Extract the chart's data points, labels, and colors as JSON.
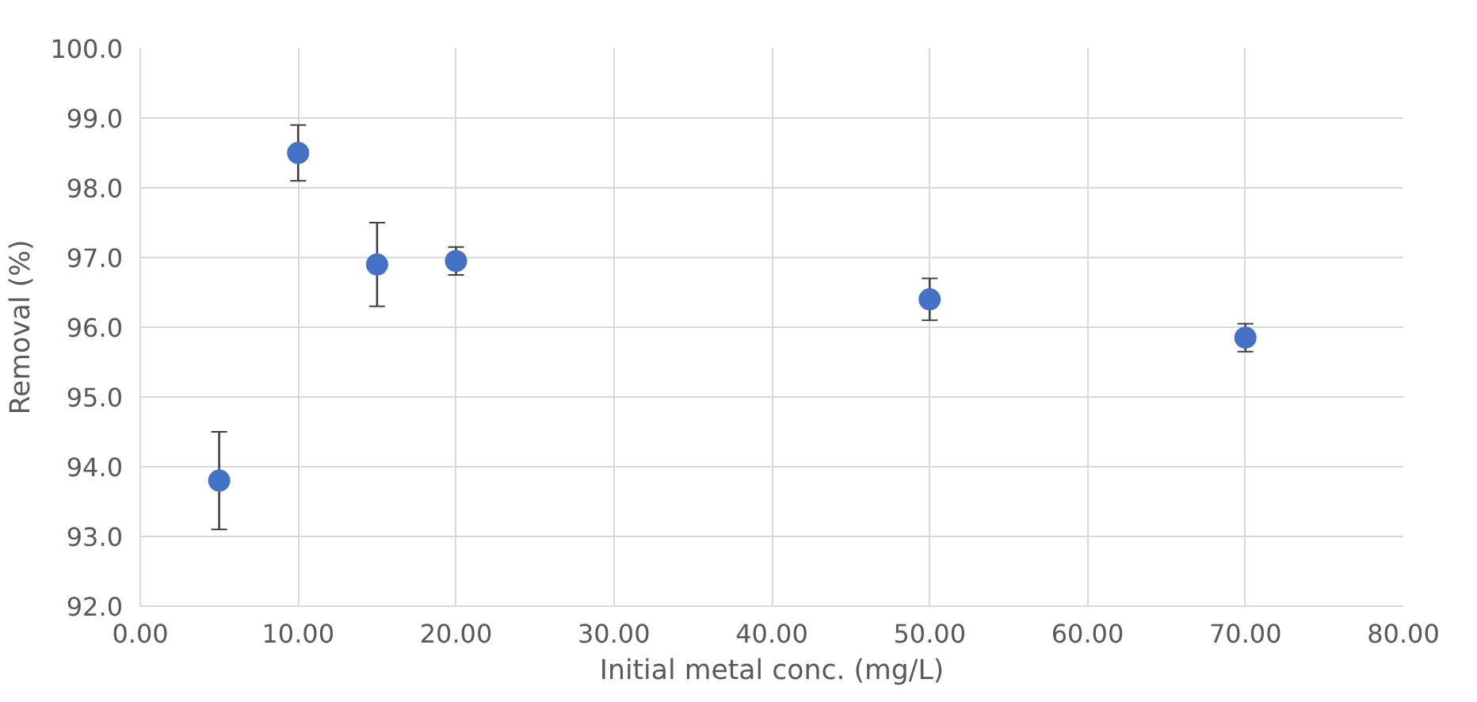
{
  "chart_data": {
    "type": "scatter",
    "xlabel": "Initial metal conc. (mg/L)",
    "ylabel": "Removal (%)",
    "x": [
      5,
      10,
      15,
      20,
      50,
      70
    ],
    "series": [
      {
        "color": "#4472c4",
        "values": [
          93.8,
          98.5,
          96.9,
          96.95,
          96.4,
          95.85
        ],
        "errors": [
          0.7,
          0.4,
          0.6,
          0.2,
          0.3,
          0.2
        ]
      }
    ],
    "xlim": [
      0,
      80
    ],
    "xticks": [
      {
        "value": 0,
        "label": "0.00"
      },
      {
        "value": 10,
        "label": "10.00"
      },
      {
        "value": 20,
        "label": "20.00"
      },
      {
        "value": 30,
        "label": "30.00"
      },
      {
        "value": 40,
        "label": "40.00"
      },
      {
        "value": 50,
        "label": "50.00"
      },
      {
        "value": 60,
        "label": "60.00"
      },
      {
        "value": 70,
        "label": "70.00"
      },
      {
        "value": 80,
        "label": "80.00"
      }
    ],
    "ylim": [
      92,
      100
    ],
    "yticks": [
      {
        "value": 92,
        "label": "92.0"
      },
      {
        "value": 93,
        "label": "93.0"
      },
      {
        "value": 94,
        "label": "94.0"
      },
      {
        "value": 95,
        "label": "95.0"
      },
      {
        "value": 96,
        "label": "96.0"
      },
      {
        "value": 97,
        "label": "97.0"
      },
      {
        "value": 98,
        "label": "98.0"
      },
      {
        "value": 99,
        "label": "99.0"
      },
      {
        "value": 100,
        "label": "100.0"
      }
    ],
    "grid": true,
    "marker": "circle"
  }
}
